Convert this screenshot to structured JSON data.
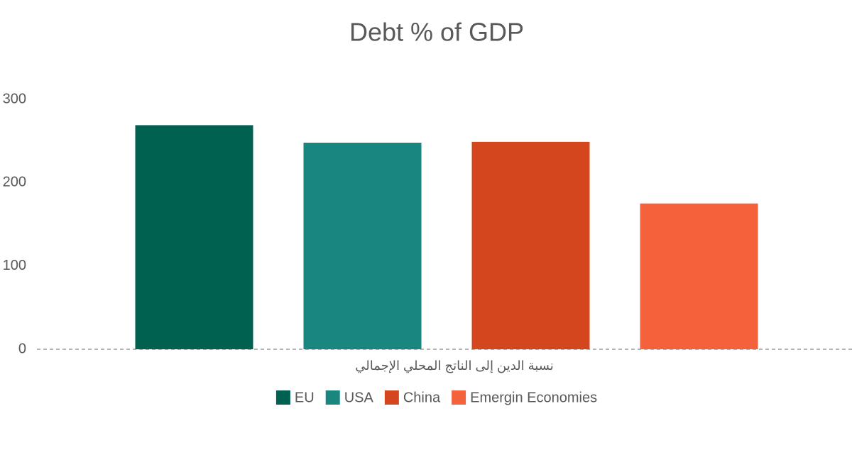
{
  "chart_data": {
    "type": "bar",
    "title": "Debt % of GDP",
    "categories": [
      "نسبة الدين إلى الناتج المحلي الإجمالي"
    ],
    "series": [
      {
        "name": "EU",
        "color": "#006151",
        "values": [
          269
        ]
      },
      {
        "name": "USA",
        "color": "#19877f",
        "values": [
          248
        ]
      },
      {
        "name": "China",
        "color": "#d4471e",
        "values": [
          249
        ]
      },
      {
        "name": "Emergin Economies",
        "color": "#f4623b",
        "values": [
          175
        ]
      }
    ],
    "ylim": [
      0,
      300
    ],
    "yticks": [
      0,
      100,
      200,
      300
    ],
    "grid": false,
    "legend": "bottom"
  }
}
